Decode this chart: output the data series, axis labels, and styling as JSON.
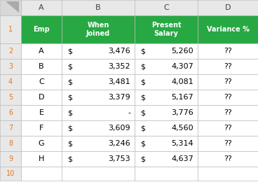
{
  "col_headers": [
    "A",
    "B",
    "C",
    "D"
  ],
  "col_header_labels": [
    "Emp",
    "When\nJoined",
    "Present\nSalary",
    "Variance %"
  ],
  "employees": [
    "A",
    "B",
    "C",
    "D",
    "E",
    "F",
    "G",
    "H"
  ],
  "when_joined_dollar": [
    "$",
    "$",
    "$",
    "$",
    "$",
    "$",
    "$",
    "$"
  ],
  "when_joined_num": [
    "3,476",
    "3,352",
    "3,481",
    "3,379",
    "-",
    "3,609",
    "3,246",
    "3,753"
  ],
  "present_salary_num": [
    "5,260",
    "4,307",
    "4,081",
    "5,167",
    "3,776",
    "4,560",
    "5,314",
    "4,637"
  ],
  "variance": [
    "??",
    "??",
    "??",
    "??",
    "??",
    "??",
    "??",
    "??"
  ],
  "header_bg": "#27A843",
  "header_text": "#FFFFFF",
  "cell_bg": "#FFFFFF",
  "cell_text": "#000000",
  "row_num_bg": "#E8E8E8",
  "col_header_bg": "#E8E8E8",
  "grid_color": "#C0C0C0",
  "corner_bg": "#D8D8D8",
  "row_num_text": "#E07820",
  "col_letters_text": "#404040",
  "n_data_rows": 8
}
